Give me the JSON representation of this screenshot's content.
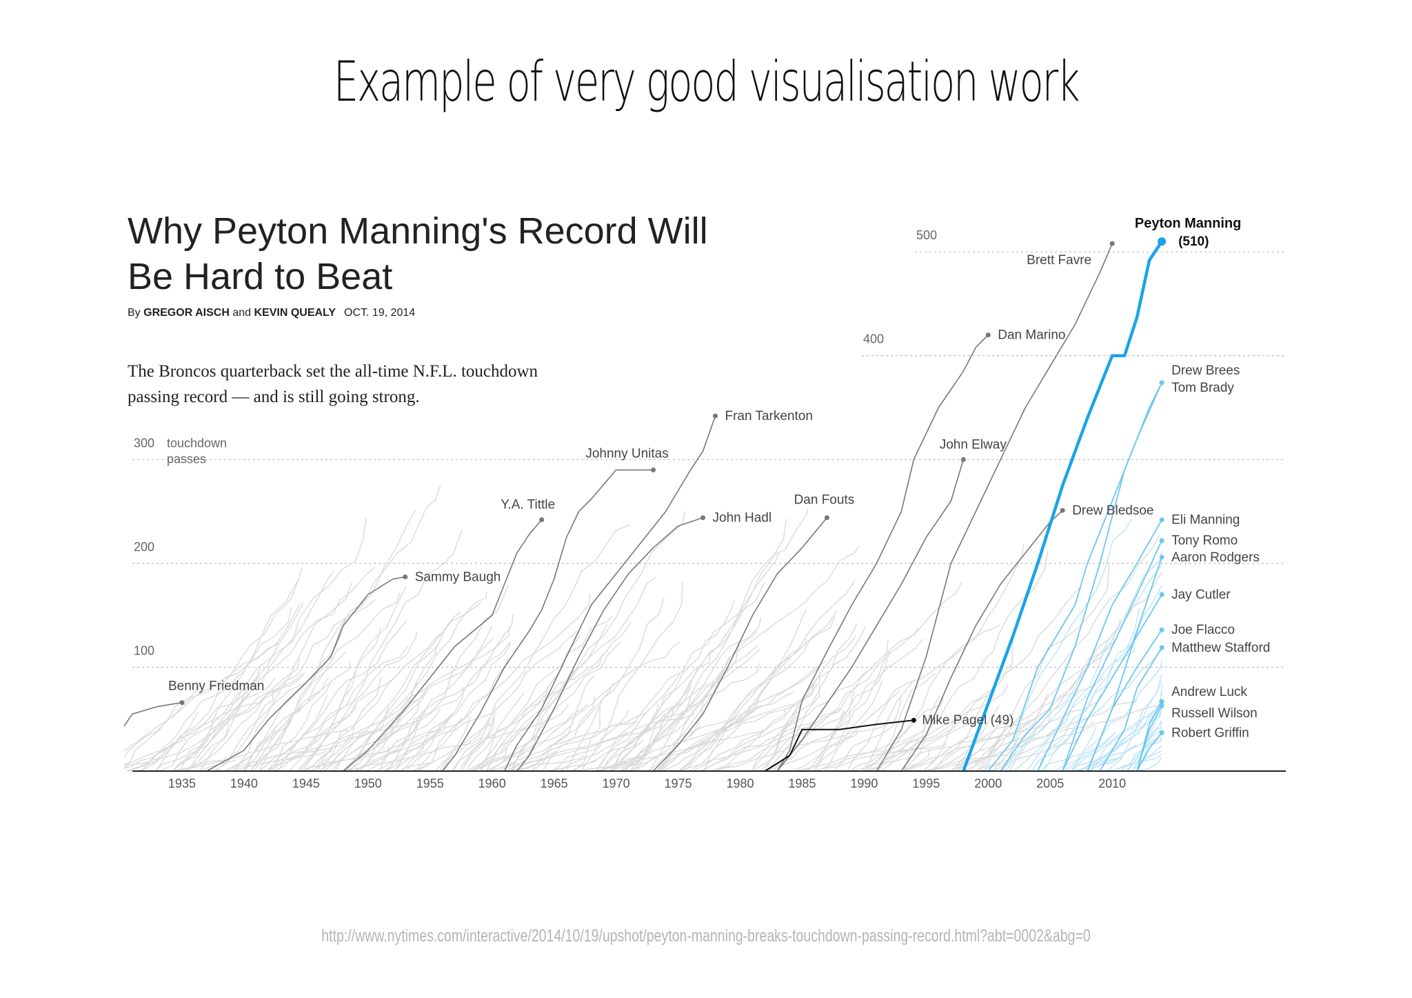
{
  "slide": {
    "title": "Example of very good visualisation work",
    "source_url": "http://www.nytimes.com/interactive/2014/10/19/upshot/peyton-manning-breaks-touchdown-passing-record.html?abt=0002&abg=0"
  },
  "article": {
    "title": "Why Peyton Manning's Record Will Be Hard to Beat",
    "byline_prefix": "By",
    "author1": "GREGOR AISCH",
    "byline_and": "and",
    "author2": "KEVIN QUEALY",
    "date": "OCT. 19, 2014",
    "dek": "The Broncos quarterback set the all-time N.F.L. touchdown passing record — and is still going strong."
  },
  "chart_data": {
    "type": "line",
    "xlim": [
      1931,
      2024
    ],
    "ylim": [
      0,
      530
    ],
    "x_ticks": [
      1935,
      1940,
      1945,
      1950,
      1955,
      1960,
      1965,
      1970,
      1975,
      1980,
      1985,
      1990,
      1995,
      2000,
      2005,
      2010
    ],
    "y_ticks": [
      100,
      200,
      300,
      400,
      500
    ],
    "y_axis_label": [
      "touchdown",
      "passes"
    ],
    "grid": "dotted horizontal",
    "colors": {
      "highlight": "#1aa3e8",
      "active": "#6cc6f2",
      "named": "#777777",
      "background": "#d9d9d9",
      "black": "#111111"
    },
    "series": [
      {
        "name": "Benny Friedman",
        "style": "named",
        "label_pos": "above",
        "points": [
          [
            1926,
            0
          ],
          [
            1929,
            20
          ],
          [
            1931,
            55
          ],
          [
            1933,
            62
          ],
          [
            1935,
            66
          ]
        ]
      },
      {
        "name": "Sammy Baugh",
        "style": "named",
        "label_pos": "right",
        "points": [
          [
            1937,
            0
          ],
          [
            1940,
            20
          ],
          [
            1942,
            50
          ],
          [
            1945,
            85
          ],
          [
            1947,
            110
          ],
          [
            1948,
            140
          ],
          [
            1950,
            170
          ],
          [
            1952,
            185
          ],
          [
            1953,
            187
          ]
        ]
      },
      {
        "name": "Y.A. Tittle",
        "style": "named",
        "label_pos": "above",
        "points": [
          [
            1948,
            0
          ],
          [
            1950,
            20
          ],
          [
            1953,
            60
          ],
          [
            1955,
            90
          ],
          [
            1957,
            120
          ],
          [
            1960,
            150
          ],
          [
            1961,
            180
          ],
          [
            1962,
            210
          ],
          [
            1963,
            228
          ],
          [
            1964,
            242
          ]
        ]
      },
      {
        "name": "Johnny Unitas",
        "style": "named",
        "label_pos": "above",
        "points": [
          [
            1956,
            0
          ],
          [
            1957,
            15
          ],
          [
            1959,
            55
          ],
          [
            1961,
            100
          ],
          [
            1963,
            135
          ],
          [
            1964,
            155
          ],
          [
            1965,
            185
          ],
          [
            1966,
            225
          ],
          [
            1967,
            250
          ],
          [
            1968,
            262
          ],
          [
            1970,
            290
          ],
          [
            1973,
            290
          ]
        ]
      },
      {
        "name": "Fran Tarkenton",
        "style": "named",
        "label_pos": "right",
        "points": [
          [
            1961,
            0
          ],
          [
            1962,
            25
          ],
          [
            1964,
            60
          ],
          [
            1966,
            110
          ],
          [
            1968,
            160
          ],
          [
            1970,
            190
          ],
          [
            1972,
            220
          ],
          [
            1974,
            250
          ],
          [
            1976,
            290
          ],
          [
            1977,
            308
          ],
          [
            1978,
            342
          ]
        ]
      },
      {
        "name": "John Hadl",
        "style": "named",
        "label_pos": "right",
        "points": [
          [
            1962,
            0
          ],
          [
            1963,
            15
          ],
          [
            1965,
            60
          ],
          [
            1967,
            110
          ],
          [
            1969,
            155
          ],
          [
            1971,
            190
          ],
          [
            1973,
            215
          ],
          [
            1975,
            236
          ],
          [
            1977,
            244
          ]
        ]
      },
      {
        "name": "Dan Fouts",
        "style": "named",
        "label_pos": "above",
        "points": [
          [
            1973,
            0
          ],
          [
            1975,
            25
          ],
          [
            1977,
            55
          ],
          [
            1979,
            100
          ],
          [
            1981,
            150
          ],
          [
            1983,
            190
          ],
          [
            1985,
            215
          ],
          [
            1987,
            244
          ]
        ]
      },
      {
        "name": "Dan Marino",
        "style": "named",
        "label_pos": "right",
        "points": [
          [
            1983,
            0
          ],
          [
            1984,
            20
          ],
          [
            1985,
            68
          ],
          [
            1987,
            115
          ],
          [
            1989,
            160
          ],
          [
            1991,
            200
          ],
          [
            1993,
            250
          ],
          [
            1994,
            300
          ],
          [
            1996,
            350
          ],
          [
            1998,
            385
          ],
          [
            1999,
            408
          ],
          [
            2000,
            420
          ]
        ]
      },
      {
        "name": "John Elway",
        "style": "named",
        "label_pos": "above",
        "points": [
          [
            1983,
            0
          ],
          [
            1985,
            30
          ],
          [
            1987,
            65
          ],
          [
            1989,
            100
          ],
          [
            1991,
            140
          ],
          [
            1993,
            180
          ],
          [
            1995,
            225
          ],
          [
            1997,
            260
          ],
          [
            1998,
            300
          ]
        ]
      },
      {
        "name": "Brett Favre",
        "style": "named",
        "label_pos": "below-left",
        "points": [
          [
            1991,
            0
          ],
          [
            1993,
            40
          ],
          [
            1995,
            110
          ],
          [
            1997,
            200
          ],
          [
            1999,
            250
          ],
          [
            2001,
            300
          ],
          [
            2003,
            350
          ],
          [
            2005,
            390
          ],
          [
            2007,
            430
          ],
          [
            2009,
            480
          ],
          [
            2010,
            508
          ]
        ]
      },
      {
        "name": "Drew Bledsoe",
        "style": "named",
        "label_pos": "right",
        "points": [
          [
            1993,
            0
          ],
          [
            1995,
            35
          ],
          [
            1997,
            90
          ],
          [
            1999,
            140
          ],
          [
            2001,
            180
          ],
          [
            2003,
            210
          ],
          [
            2005,
            240
          ],
          [
            2006,
            251
          ]
        ]
      },
      {
        "name": "Mike Pagel",
        "value_label": "(49)",
        "style": "black",
        "label_pos": "right",
        "points": [
          [
            1982,
            0
          ],
          [
            1984,
            15
          ],
          [
            1985,
            40
          ],
          [
            1988,
            40
          ],
          [
            1991,
            45
          ],
          [
            1994,
            49
          ]
        ]
      },
      {
        "name": "Peyton Manning",
        "value_label": "(510)",
        "style": "highlight",
        "label_pos": "top",
        "points": [
          [
            1998,
            0
          ],
          [
            2000,
            65
          ],
          [
            2002,
            130
          ],
          [
            2004,
            200
          ],
          [
            2006,
            275
          ],
          [
            2008,
            340
          ],
          [
            2010,
            400
          ],
          [
            2011,
            400
          ],
          [
            2012,
            437
          ],
          [
            2013,
            492
          ],
          [
            2014,
            510
          ]
        ]
      },
      {
        "name": "Drew Brees",
        "style": "active",
        "label_pos": "right",
        "points": [
          [
            2001,
            0
          ],
          [
            2003,
            35
          ],
          [
            2005,
            60
          ],
          [
            2007,
            120
          ],
          [
            2009,
            200
          ],
          [
            2011,
            290
          ],
          [
            2013,
            350
          ],
          [
            2014,
            374
          ]
        ]
      },
      {
        "name": "Tom Brady",
        "style": "active",
        "label_pos": "right",
        "points": [
          [
            2000,
            0
          ],
          [
            2002,
            30
          ],
          [
            2004,
            100
          ],
          [
            2007,
            160
          ],
          [
            2008,
            200
          ],
          [
            2010,
            260
          ],
          [
            2012,
            320
          ],
          [
            2014,
            374
          ]
        ]
      },
      {
        "name": "Eli Manning",
        "style": "active",
        "label_pos": "right",
        "points": [
          [
            2004,
            0
          ],
          [
            2006,
            50
          ],
          [
            2008,
            100
          ],
          [
            2010,
            160
          ],
          [
            2012,
            200
          ],
          [
            2014,
            242
          ]
        ]
      },
      {
        "name": "Tony Romo",
        "style": "active",
        "label_pos": "right",
        "points": [
          [
            2006,
            0
          ],
          [
            2008,
            70
          ],
          [
            2010,
            120
          ],
          [
            2012,
            170
          ],
          [
            2014,
            222
          ]
        ]
      },
      {
        "name": "Aaron Rodgers",
        "style": "active",
        "label_pos": "right",
        "points": [
          [
            2008,
            0
          ],
          [
            2010,
            60
          ],
          [
            2012,
            135
          ],
          [
            2014,
            206
          ]
        ]
      },
      {
        "name": "Jay Cutler",
        "style": "active",
        "label_pos": "right",
        "points": [
          [
            2006,
            0
          ],
          [
            2008,
            50
          ],
          [
            2010,
            90
          ],
          [
            2012,
            130
          ],
          [
            2014,
            170
          ]
        ]
      },
      {
        "name": "Joe Flacco",
        "style": "active",
        "label_pos": "right",
        "points": [
          [
            2008,
            0
          ],
          [
            2010,
            60
          ],
          [
            2012,
            100
          ],
          [
            2014,
            136
          ]
        ]
      },
      {
        "name": "Matthew Stafford",
        "style": "active",
        "label_pos": "right",
        "points": [
          [
            2009,
            0
          ],
          [
            2011,
            40
          ],
          [
            2012,
            80
          ],
          [
            2014,
            119
          ]
        ]
      },
      {
        "name": "Andrew Luck",
        "style": "active",
        "label_pos": "right",
        "points": [
          [
            2012,
            0
          ],
          [
            2013,
            45
          ],
          [
            2014,
            67
          ]
        ]
      },
      {
        "name": "Russell Wilson",
        "style": "active",
        "label_pos": "right",
        "points": [
          [
            2012,
            0
          ],
          [
            2013,
            40
          ],
          [
            2014,
            63
          ]
        ]
      },
      {
        "name": "Robert Griffin",
        "style": "active",
        "label_pos": "right",
        "points": [
          [
            2012,
            0
          ],
          [
            2013,
            22
          ],
          [
            2014,
            37
          ]
        ]
      }
    ]
  }
}
